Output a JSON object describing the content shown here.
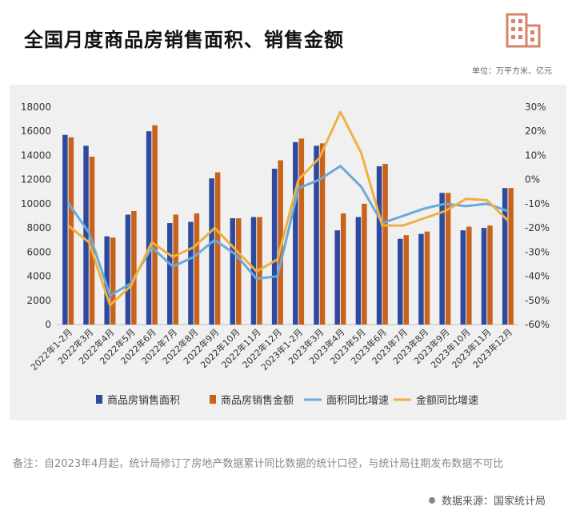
{
  "header": {
    "title": "全国月度商品房销售面积、销售金额",
    "unit": "单位：万平方米、亿元"
  },
  "footer": {
    "note": "备注：自2023年4月起，统计局修订了房地产数据累计同比数据的统计口径，与统计局往期发布数据不可比",
    "source": "数据来源：国家统计局"
  },
  "colors": {
    "area": "#2e4a9e",
    "amount": "#c9621c",
    "area_yoy": "#6aaad8",
    "amount_yoy": "#f0b040",
    "background": "#f0f0f0"
  },
  "chart_data": {
    "type": "bar",
    "categories": [
      "2022年1-2月",
      "2022年3月",
      "2022年4月",
      "2022年5月",
      "2022年6月",
      "2022年7月",
      "2022年8月",
      "2022年9月",
      "2022年10月",
      "2022年11月",
      "2022年12月",
      "2023年1-2月",
      "2023年3月",
      "2023年4月",
      "2023年5月",
      "2023年6月",
      "2023年7月",
      "2023年8月",
      "2023年9月",
      "2023年10月",
      "2023年11月",
      "2023年12月"
    ],
    "series": [
      {
        "name": "商品房销售面积",
        "type": "bar",
        "axis": "left",
        "values": [
          15700,
          14800,
          7300,
          9100,
          16000,
          8400,
          8500,
          12100,
          8800,
          8900,
          12900,
          15100,
          14800,
          7800,
          8900,
          13100,
          7100,
          7500,
          10900,
          7800,
          8000,
          11300
        ]
      },
      {
        "name": "商品房销售金额",
        "type": "bar",
        "axis": "left",
        "values": [
          15500,
          13900,
          7200,
          9400,
          16500,
          9100,
          9200,
          12600,
          8800,
          8900,
          13600,
          15400,
          15000,
          9200,
          10000,
          13300,
          7400,
          7700,
          10900,
          8100,
          8200,
          11300
        ]
      },
      {
        "name": "面积同比增速",
        "type": "line",
        "axis": "right",
        "values": [
          -9.6,
          -22,
          -48,
          -43,
          -28,
          -36,
          -32,
          -25,
          -31,
          -41,
          -40,
          -3.6,
          0,
          5.6,
          -3,
          -18,
          -15,
          -12,
          -10,
          -11,
          -10,
          -13
        ]
      },
      {
        "name": "金额同比增速",
        "type": "line",
        "axis": "right",
        "values": [
          -19,
          -26,
          -52,
          -44,
          -26,
          -32,
          -28,
          -20,
          -29,
          -38,
          -33,
          0,
          9,
          28,
          11,
          -19,
          -19,
          -16,
          -13,
          -8,
          -8.5,
          -17
        ]
      }
    ],
    "left_axis": {
      "ylim": [
        0,
        18000
      ],
      "ticks": [
        "0",
        "2000",
        "4000",
        "6000",
        "8000",
        "10000",
        "12000",
        "14000",
        "16000",
        "18000"
      ]
    },
    "right_axis": {
      "ylim": [
        -60,
        30
      ],
      "ticks": [
        "-60%",
        "-50%",
        "-40%",
        "-30%",
        "-20%",
        "-10%",
        "0%",
        "10%",
        "20%",
        "30%"
      ]
    },
    "legend_position": "bottom",
    "grid": false
  }
}
